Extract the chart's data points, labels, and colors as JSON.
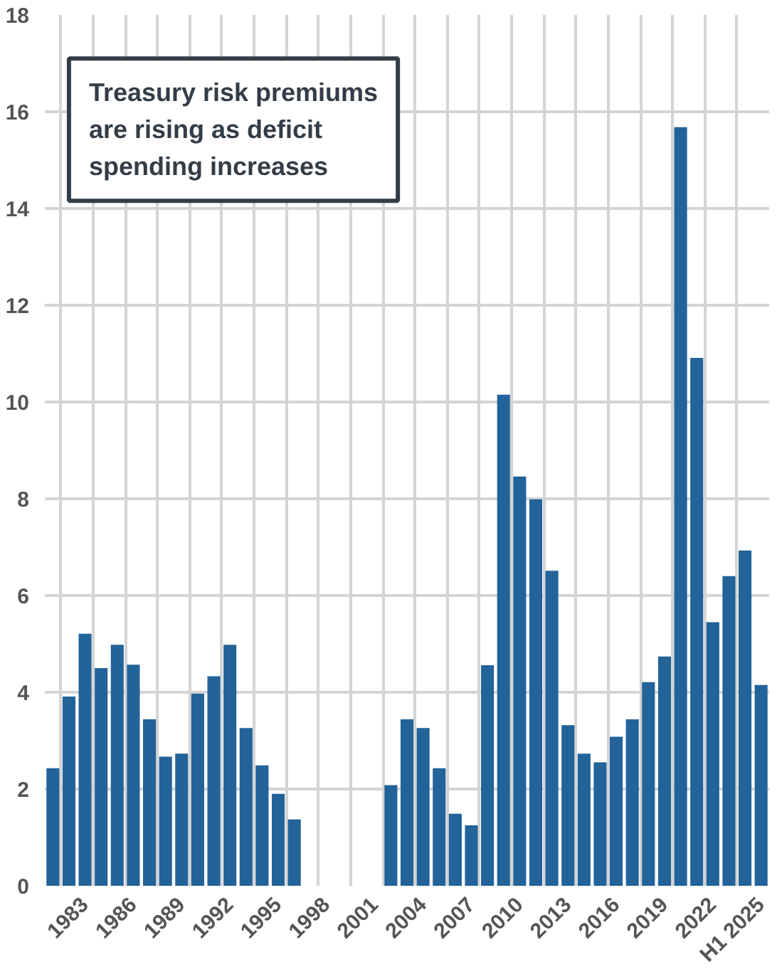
{
  "chart_data": {
    "type": "bar",
    "title": "Treasury risk premiums\nare rising as deficit\nspending increases",
    "categories": [
      null,
      null,
      "1983",
      null,
      null,
      "1986",
      null,
      null,
      "1989",
      null,
      null,
      "1992",
      null,
      null,
      "1995",
      null,
      null,
      "1998",
      null,
      null,
      "2001",
      null,
      null,
      "2004",
      null,
      null,
      "2007",
      null,
      null,
      "2010",
      null,
      null,
      "2013",
      null,
      null,
      "2016",
      null,
      null,
      "2019",
      null,
      null,
      "2022",
      null,
      null,
      "H1 2025"
    ],
    "values": [
      2.43,
      3.91,
      5.21,
      4.5,
      4.98,
      4.57,
      3.44,
      2.67,
      2.73,
      3.97,
      4.33,
      4.98,
      3.26,
      2.49,
      1.9,
      1.37,
      null,
      null,
      null,
      null,
      null,
      2.08,
      3.44,
      3.26,
      2.43,
      1.49,
      1.25,
      4.56,
      10.15,
      8.46,
      7.99,
      6.51,
      3.32,
      2.73,
      2.55,
      3.08,
      3.44,
      4.21,
      4.74,
      15.68,
      10.91,
      5.45,
      6.4,
      6.93,
      4.15
    ],
    "color": "#226399",
    "ylim": [
      0,
      18
    ],
    "yticks": [
      0,
      2,
      4,
      6,
      8,
      10,
      12,
      14,
      16,
      18
    ],
    "grid": true
  }
}
